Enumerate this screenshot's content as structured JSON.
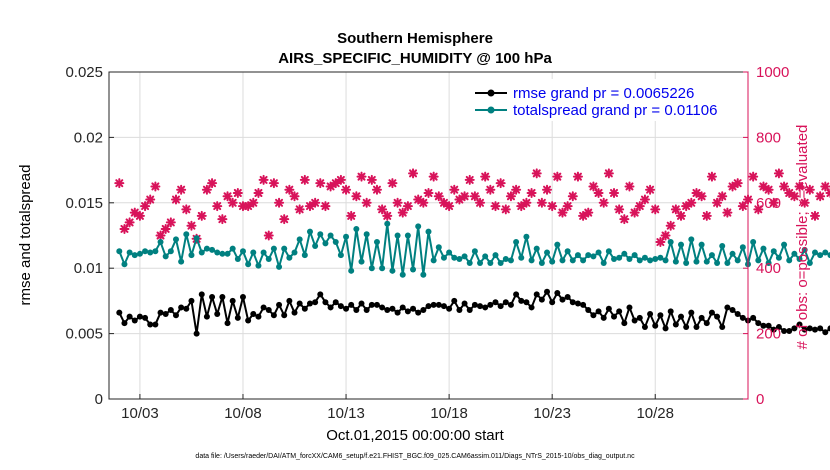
{
  "chart_data": {
    "type": "line",
    "title_line1": "Southern Hemisphere",
    "title_line2": "AIRS_SPECIFIC_HUMIDITY @ 100 hPa",
    "xlabel": "Oct.01,2015 00:00:00 start",
    "ylabel_left": "rmse and totalspread",
    "ylabel_right": "# of obs: o=possible; ×=evaluated",
    "footer": "data file: /Users/raeder/DAI/ATM_forcXX/CAM6_setup/f.e21.FHIST_BGC.f09_025.CAM6assim.011/Diags_NTrS_2015-10/obs_diag_output.nc",
    "x_ticks": [
      "10/03",
      "10/08",
      "10/13",
      "10/18",
      "10/23",
      "10/28"
    ],
    "x_tick_days": [
      3,
      8,
      13,
      18,
      23,
      28
    ],
    "xlim": [
      1.5,
      32.5
    ],
    "ylim_left": [
      0,
      0.025
    ],
    "y_ticks_left": [
      "0",
      "0.005",
      "0.01",
      "0.015",
      "0.02",
      "0.025"
    ],
    "ylim_right": [
      0,
      1000
    ],
    "y_ticks_right": [
      "0",
      "200",
      "400",
      "600",
      "800",
      "1000"
    ],
    "colors": {
      "rmse": "#000000",
      "spread": "#008080",
      "obs": "#d8135a"
    },
    "series": [
      {
        "name": "rmse grand pr = 0.0065226",
        "axis": "left",
        "values": [
          0.0066,
          0.0058,
          0.0063,
          0.006,
          0.0063,
          0.0062,
          0.0057,
          0.0057,
          0.0066,
          0.0065,
          0.0068,
          0.0064,
          0.007,
          0.0069,
          0.0075,
          0.005,
          0.008,
          0.0063,
          0.0078,
          0.0065,
          0.0078,
          0.0058,
          0.0075,
          0.0062,
          0.0078,
          0.006,
          0.0065,
          0.0063,
          0.007,
          0.0068,
          0.0064,
          0.0072,
          0.0064,
          0.0075,
          0.0066,
          0.0073,
          0.0069,
          0.0073,
          0.0074,
          0.008,
          0.0074,
          0.007,
          0.0074,
          0.0071,
          0.0069,
          0.0072,
          0.0068,
          0.0073,
          0.0068,
          0.0072,
          0.0072,
          0.007,
          0.0068,
          0.0069,
          0.0066,
          0.007,
          0.0067,
          0.0069,
          0.0066,
          0.0068,
          0.0071,
          0.0072,
          0.0072,
          0.0071,
          0.0069,
          0.0075,
          0.0068,
          0.0073,
          0.0068,
          0.0072,
          0.0071,
          0.007,
          0.0072,
          0.0074,
          0.0071,
          0.0074,
          0.0072,
          0.008,
          0.0075,
          0.0074,
          0.007,
          0.008,
          0.0076,
          0.0082,
          0.0074,
          0.0081,
          0.0076,
          0.0078,
          0.0074,
          0.0073,
          0.0072,
          0.0068,
          0.0064,
          0.0067,
          0.0062,
          0.0069,
          0.0063,
          0.0067,
          0.0058,
          0.007,
          0.006,
          0.0062,
          0.0055,
          0.0065,
          0.0056,
          0.0064,
          0.0054,
          0.0067,
          0.0057,
          0.0063,
          0.0055,
          0.0066,
          0.0055,
          0.0062,
          0.0058,
          0.0066,
          0.0063,
          0.0055,
          0.007,
          0.0068,
          0.0065,
          0.0062,
          0.006,
          0.0062,
          0.0058,
          0.0056,
          0.0056,
          0.0053,
          0.0055,
          0.0052,
          0.0052,
          0.0054,
          0.0057,
          0.0053,
          0.0054,
          0.0053,
          0.0054,
          0.0051,
          0.0054,
          0.0045
        ]
      },
      {
        "name": "totalspread grand pr = 0.01106",
        "axis": "left",
        "values": [
          0.0113,
          0.0103,
          0.0112,
          0.011,
          0.0111,
          0.0113,
          0.0112,
          0.0113,
          0.012,
          0.0109,
          0.0113,
          0.0122,
          0.0105,
          0.0126,
          0.011,
          0.0123,
          0.0112,
          0.0115,
          0.0114,
          0.0112,
          0.0111,
          0.0111,
          0.0115,
          0.0107,
          0.0113,
          0.0103,
          0.0112,
          0.0102,
          0.0112,
          0.0107,
          0.0115,
          0.0101,
          0.0115,
          0.0108,
          0.0112,
          0.0122,
          0.011,
          0.0128,
          0.0117,
          0.0126,
          0.0119,
          0.0125,
          0.012,
          0.011,
          0.0124,
          0.0098,
          0.013,
          0.0105,
          0.0126,
          0.01,
          0.012,
          0.01,
          0.0134,
          0.0098,
          0.0125,
          0.0095,
          0.0125,
          0.0099,
          0.0132,
          0.0095,
          0.0128,
          0.0106,
          0.0116,
          0.0108,
          0.0112,
          0.0108,
          0.0107,
          0.0109,
          0.0104,
          0.0113,
          0.0104,
          0.0109,
          0.0104,
          0.011,
          0.0104,
          0.0107,
          0.0106,
          0.012,
          0.0108,
          0.0124,
          0.0106,
          0.0115,
          0.0104,
          0.0112,
          0.0105,
          0.0118,
          0.0106,
          0.0113,
          0.0106,
          0.011,
          0.0106,
          0.011,
          0.0109,
          0.0112,
          0.0104,
          0.0113,
          0.0107,
          0.0108,
          0.0111,
          0.0107,
          0.011,
          0.0106,
          0.0108,
          0.0106,
          0.0107,
          0.0108,
          0.0106,
          0.012,
          0.0105,
          0.0118,
          0.0104,
          0.0122,
          0.0105,
          0.0118,
          0.0105,
          0.011,
          0.0104,
          0.0117,
          0.0104,
          0.0111,
          0.0106,
          0.0116,
          0.0103,
          0.012,
          0.0106,
          0.0115,
          0.0104,
          0.0113,
          0.0108,
          0.0118,
          0.0106,
          0.0111,
          0.0107,
          0.0114,
          0.0104,
          0.0112,
          0.011,
          0.0112,
          0.011,
          0.0114,
          0.0105,
          0.0101
        ]
      },
      {
        "name": "obs evaluated",
        "axis": "right",
        "values": [
          660,
          520,
          540,
          570,
          560,
          590,
          610,
          650,
          500,
          520,
          540,
          610,
          640,
          580,
          530,
          490,
          560,
          640,
          660,
          590,
          550,
          620,
          600,
          630,
          590,
          590,
          600,
          630,
          670,
          500,
          660,
          600,
          550,
          640,
          620,
          580,
          670,
          590,
          600,
          660,
          590,
          650,
          660,
          670,
          640,
          560,
          620,
          680,
          600,
          670,
          640,
          580,
          560,
          660,
          600,
          570,
          590,
          690,
          610,
          600,
          630,
          680,
          620,
          600,
          590,
          640,
          610,
          620,
          670,
          620,
          600,
          680,
          640,
          590,
          660,
          580,
          620,
          640,
          590,
          600,
          630,
          690,
          600,
          640,
          590,
          680,
          570,
          590,
          620,
          680,
          560,
          570,
          650,
          630,
          600,
          690,
          630,
          580,
          550,
          650,
          570,
          590,
          610,
          640,
          580,
          480,
          500,
          530,
          580,
          560,
          590,
          600,
          630,
          620,
          560,
          680,
          600,
          620,
          570,
          650,
          660,
          590,
          610,
          680,
          580,
          650,
          640,
          600,
          690,
          650,
          630,
          620,
          650,
          600,
          640,
          560,
          620,
          650,
          630,
          590
        ]
      }
    ]
  }
}
